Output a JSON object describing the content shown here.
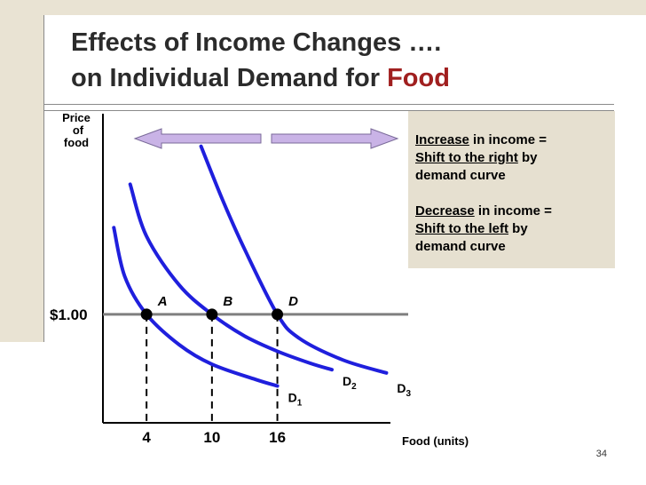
{
  "slide": {
    "title_line1": "Effects of Income Changes ….",
    "title_line2_prefix": "on Individual Demand for ",
    "title_line2_accent": "Food",
    "number": "34",
    "colors": {
      "accent": "#a01f1f",
      "curve": "#1f1fdd",
      "arrow_fill": "#c9b3e6",
      "panel": "#e6e0d0",
      "frame": "#e9e3d3"
    }
  },
  "note": {
    "increase_word": "Increase",
    "increase_rest": " in income =",
    "shift_right": "Shift to the right",
    "shift_right_rest": " by",
    "demand_curve_1": "demand curve",
    "decrease_word": "Decrease",
    "decrease_rest": " in income =",
    "shift_left": "Shift to the left",
    "shift_left_rest": " by",
    "demand_curve_2": "demand curve"
  },
  "chart_data": {
    "type": "line",
    "ylabel": "Price of food",
    "xlabel": "Food (units)",
    "price_line_label": "$1.00",
    "price": 1.0,
    "x_ticks": [
      4,
      10,
      16
    ],
    "series": [
      {
        "name": "D1",
        "points": [
          [
            1,
            1.8
          ],
          [
            2,
            1.35
          ],
          [
            4,
            1.0
          ],
          [
            7,
            0.72
          ],
          [
            10,
            0.54
          ],
          [
            14,
            0.4
          ],
          [
            16,
            0.34
          ]
        ]
      },
      {
        "name": "D2",
        "points": [
          [
            2.5,
            2.2
          ],
          [
            4,
            1.72
          ],
          [
            7,
            1.27
          ],
          [
            10,
            1.0
          ],
          [
            13,
            0.8
          ],
          [
            16,
            0.66
          ],
          [
            19,
            0.55
          ],
          [
            21,
            0.49
          ]
        ]
      },
      {
        "name": "D3",
        "points": [
          [
            9,
            2.55
          ],
          [
            11,
            2.05
          ],
          [
            13,
            1.6
          ],
          [
            16,
            1.0
          ],
          [
            18,
            0.78
          ],
          [
            22,
            0.58
          ],
          [
            26,
            0.46
          ]
        ]
      }
    ],
    "points": [
      {
        "label": "A",
        "x": 4,
        "y": 1.0
      },
      {
        "label": "B",
        "x": 10,
        "y": 1.0
      },
      {
        "label": "D",
        "x": 16,
        "y": 1.0
      }
    ],
    "xlim": [
      0,
      28
    ],
    "ylim": [
      0,
      2.9
    ]
  }
}
